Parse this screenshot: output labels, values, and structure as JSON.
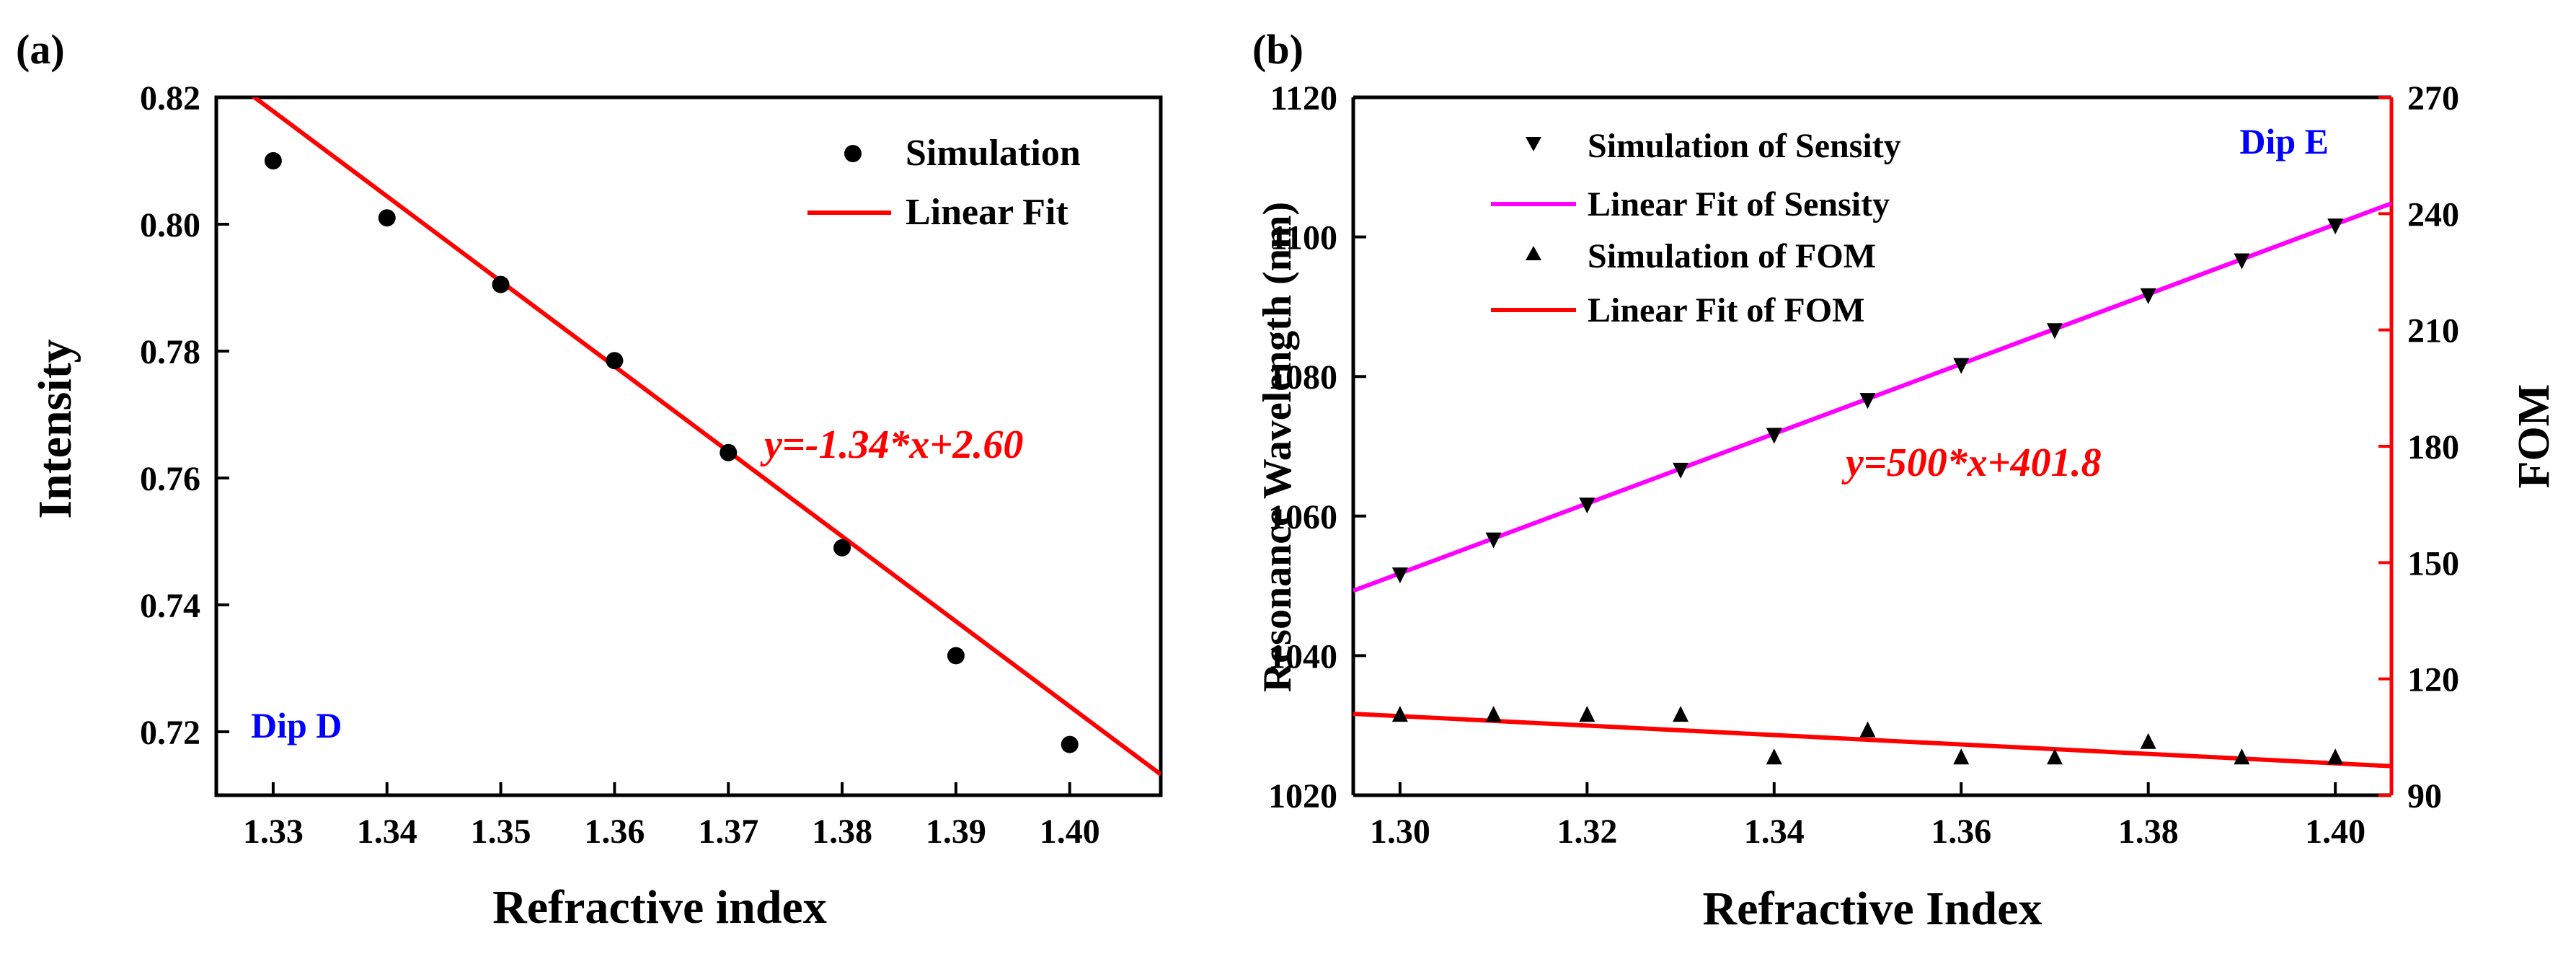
{
  "chart_data": [
    {
      "panel": "(a)",
      "type": "scatter",
      "title": "",
      "xlabel": "Refractive index",
      "ylabel": "Intensity",
      "xlim": [
        1.325,
        1.408
      ],
      "ylim": [
        0.71,
        0.82
      ],
      "xticks": [
        1.33,
        1.34,
        1.35,
        1.36,
        1.37,
        1.38,
        1.39,
        1.4
      ],
      "xtick_labels": [
        "1.33",
        "1.34",
        "1.35",
        "1.36",
        "1.37",
        "1.38",
        "1.39",
        "1.40"
      ],
      "yticks": [
        0.72,
        0.74,
        0.76,
        0.78,
        0.8,
        0.82
      ],
      "ytick_labels": [
        "0.72",
        "0.74",
        "0.76",
        "0.78",
        "0.80",
        "0.82"
      ],
      "series": [
        {
          "name": "Simulation",
          "kind": "points",
          "color": "#000000",
          "x": [
            1.33,
            1.34,
            1.35,
            1.36,
            1.37,
            1.38,
            1.39,
            1.4
          ],
          "y": [
            0.81,
            0.801,
            0.7905,
            0.7785,
            0.764,
            0.749,
            0.732,
            0.718
          ]
        },
        {
          "name": "Linear Fit",
          "kind": "line",
          "color": "#ff0000",
          "slope": -1.34,
          "intercept": 2.6
        }
      ],
      "equation": "y=-1.34*x+2.60",
      "annotation": "Dip D",
      "legend_position": "top-right"
    },
    {
      "panel": "(b)",
      "type": "scatter",
      "title": "",
      "xlabel": "Refractive Index",
      "ylabel": "Resonance Wavelength (nm)",
      "y2label": "FOM",
      "xlim": [
        1.295,
        1.406
      ],
      "ylim": [
        1020,
        1120
      ],
      "y2lim": [
        90,
        270
      ],
      "xticks": [
        1.3,
        1.32,
        1.34,
        1.36,
        1.38,
        1.4
      ],
      "xtick_labels": [
        "1.30",
        "1.32",
        "1.34",
        "1.36",
        "1.38",
        "1.40"
      ],
      "yticks": [
        1020,
        1040,
        1060,
        1080,
        1100,
        1120
      ],
      "ytick_labels": [
        "1020",
        "1040",
        "1060",
        "1080",
        "1100",
        "1120"
      ],
      "y2ticks": [
        90,
        120,
        150,
        180,
        210,
        240,
        270
      ],
      "y2tick_labels": [
        "90",
        "120",
        "150",
        "180",
        "210",
        "240",
        "270"
      ],
      "series": [
        {
          "name": "Simulation of Sensity",
          "kind": "points",
          "marker": "triangle-down",
          "axis": "left",
          "color": "#000000",
          "x": [
            1.3,
            1.31,
            1.32,
            1.33,
            1.34,
            1.35,
            1.36,
            1.37,
            1.38,
            1.39,
            1.4
          ],
          "y": [
            1051.5,
            1056.5,
            1061.5,
            1066.5,
            1071.5,
            1076.5,
            1081.5,
            1086.5,
            1091.5,
            1096.5,
            1101.5
          ]
        },
        {
          "name": "Linear Fit of Sensity",
          "kind": "line",
          "axis": "left",
          "color": "#ff00ff",
          "slope": 500,
          "intercept": 401.8
        },
        {
          "name": "Simulation of FOM",
          "kind": "points",
          "marker": "triangle-up",
          "axis": "right",
          "color": "#000000",
          "x": [
            1.3,
            1.31,
            1.32,
            1.33,
            1.34,
            1.35,
            1.36,
            1.37,
            1.38,
            1.39,
            1.4
          ],
          "y": [
            111,
            111,
            111,
            111,
            100,
            107,
            100,
            100,
            104,
            100,
            100
          ]
        },
        {
          "name": "Linear Fit of FOM",
          "kind": "line",
          "axis": "right",
          "color": "#ff0000",
          "x": [
            1.295,
            1.406
          ],
          "y": [
            111,
            97.5
          ]
        }
      ],
      "equation": "y=500*x+401.8",
      "annotation": "Dip E",
      "legend_position": "top-left"
    }
  ],
  "colors": {
    "axis": "#000000",
    "points": "#000000",
    "fit_red": "#ff0000",
    "fit_magenta": "#ff00ff",
    "annotation_blue": "#0000ff",
    "right_axis": "#ff0000"
  }
}
